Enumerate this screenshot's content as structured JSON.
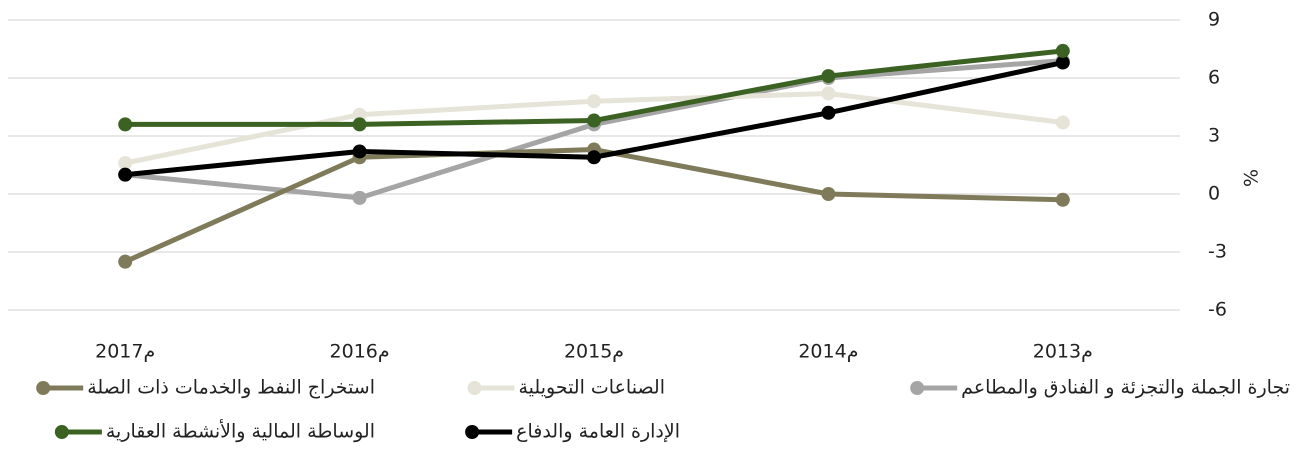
{
  "chart_data": {
    "type": "line",
    "y_label": "%",
    "categories": [
      "2017م",
      "2016م",
      "2015م",
      "2014م",
      "2013م"
    ],
    "series": [
      {
        "name": "تجارة الجملة والتجزئة و الفنادق والمطاعم",
        "color": "#a5a5a5",
        "values": [
          1.0,
          -0.2,
          3.6,
          6.0,
          6.9
        ]
      },
      {
        "name": "الصناعات التحويلية",
        "color": "#e6e4d8",
        "values": [
          1.6,
          4.1,
          4.8,
          5.2,
          3.7
        ]
      },
      {
        "name": "استخراج النفط والخدمات ذات الصلة",
        "color": "#7f7b5a",
        "values": [
          -3.5,
          1.9,
          2.3,
          0.0,
          -0.3
        ]
      },
      {
        "name": "الإدارة العامة والدفاع",
        "color": "#000000",
        "values": [
          1.0,
          2.2,
          1.9,
          4.2,
          6.8
        ]
      },
      {
        "name": "الوساطة المالية والأنشطة العقارية",
        "color": "#3b6222",
        "values": [
          3.6,
          3.6,
          3.8,
          6.1,
          7.4
        ]
      }
    ],
    "ylim": [
      -6,
      9
    ],
    "yticks": [
      -6,
      -3,
      0,
      3,
      6,
      9
    ],
    "grid": true,
    "y_axis_side": "right"
  }
}
